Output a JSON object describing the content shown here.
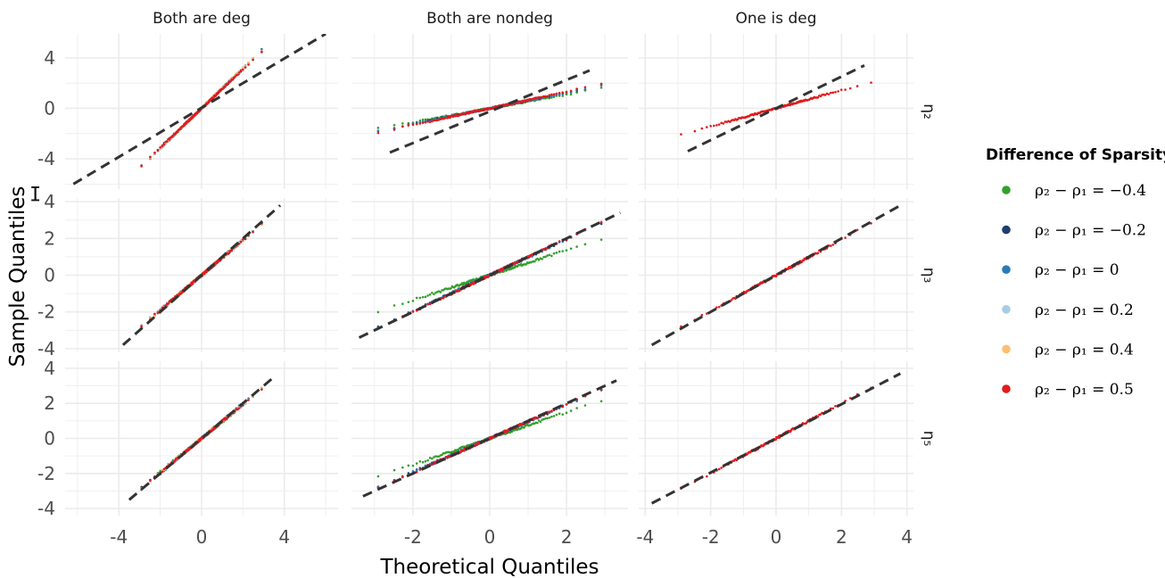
{
  "chart_data": {
    "type": "scatter",
    "subtype": "faceted QQ plot with reference lines",
    "xlabel": "Theoretical Quantiles",
    "ylabel": "Sample Quantiles",
    "columns": [
      "Both are deg",
      "Both are nondeg",
      "One is deg"
    ],
    "rows": [
      "η₂",
      "η₃",
      "η₅"
    ],
    "scales": "free_x by column, free_y by row",
    "x_ticks": [
      [
        -4,
        0,
        4
      ],
      [
        -2,
        0,
        2
      ],
      [
        -4,
        -2,
        0,
        2,
        4
      ]
    ],
    "y_ticks": [
      [
        -4,
        0,
        4
      ],
      [
        -4,
        -2,
        0,
        2,
        4
      ],
      [
        -4,
        -2,
        0,
        2,
        4
      ]
    ],
    "legend": {
      "title": "Difference of Sparsity",
      "position": "right",
      "entries": [
        {
          "label": "ρ₂ − ρ₁ = −0.4",
          "color": "#33a02c"
        },
        {
          "label": "ρ₂ − ρ₁ = −0.2",
          "color": "#1f3d6e"
        },
        {
          "label": "ρ₂ − ρ₁ = 0",
          "color": "#2b7bb9"
        },
        {
          "label": "ρ₂ − ρ₁ = 0.2",
          "color": "#a6cee3"
        },
        {
          "label": "ρ₂ − ρ₁ = 0.4",
          "color": "#fdbf6f"
        },
        {
          "label": "ρ₂ − ρ₁ = 0.5",
          "color": "#e31a1c"
        }
      ]
    },
    "grid": true,
    "panels": [
      {
        "row": 0,
        "col": 0,
        "line": {
          "x1": -6.2,
          "y1": -6.0,
          "x2": 6.0,
          "y2": 5.9
        },
        "series": [
          {
            "key": "m0.4",
            "slope": 1.6,
            "xmin": -3.3,
            "xmax": 3.2
          },
          {
            "key": "m0.2",
            "slope": 1.55,
            "xmin": -3.2,
            "xmax": 3.2
          },
          {
            "key": "0",
            "slope": 1.6,
            "xmin": -3.3,
            "xmax": 3.35
          },
          {
            "key": "0.2",
            "slope": 1.58,
            "xmin": -3.2,
            "xmax": 3.2
          },
          {
            "key": "0.4",
            "slope": 1.58,
            "xmin": -3.2,
            "xmax": 3.2
          },
          {
            "key": "0.5",
            "slope": 1.55,
            "xmin": -3.2,
            "xmax": 3.2
          }
        ]
      },
      {
        "row": 0,
        "col": 1,
        "line": {
          "x1": -2.6,
          "y1": -3.5,
          "x2": 2.6,
          "y2": 3.0
        },
        "series": [
          {
            "key": "m0.4",
            "slope": 0.55,
            "xmin": -3.3,
            "xmax": 3.3
          },
          {
            "key": "m0.2",
            "slope": 0.62,
            "xmin": -3.3,
            "xmax": 3.3
          },
          {
            "key": "0",
            "slope": 0.63,
            "xmin": -3.2,
            "xmax": 3.2
          },
          {
            "key": "0.5",
            "slope": 0.66,
            "xmin": -3.3,
            "xmax": 3.3
          }
        ]
      },
      {
        "row": 0,
        "col": 2,
        "line": {
          "x1": -2.7,
          "y1": -3.4,
          "x2": 2.7,
          "y2": 3.4
        },
        "series": [
          {
            "key": "0.5",
            "slope": 0.72,
            "xmin": -3.3,
            "xmax": 3.3
          }
        ]
      },
      {
        "row": 1,
        "col": 0,
        "line": {
          "x1": -3.8,
          "y1": -3.8,
          "x2": 3.8,
          "y2": 3.8
        },
        "series": [
          {
            "key": "m0.4",
            "slope": 0.95,
            "xmin": -3.3,
            "xmax": 3.3
          },
          {
            "key": "m0.2",
            "slope": 0.95,
            "xmin": -3.3,
            "xmax": 3.3
          },
          {
            "key": "0",
            "slope": 0.98,
            "xmin": -3.3,
            "xmax": 3.3
          },
          {
            "key": "0.2",
            "slope": 0.96,
            "xmin": -3.3,
            "xmax": 3.2
          },
          {
            "key": "0.4",
            "slope": 0.96,
            "xmin": -3.3,
            "xmax": 3.2
          },
          {
            "key": "0.5",
            "slope": 0.95,
            "xmin": -3.3,
            "xmax": 3.2
          }
        ]
      },
      {
        "row": 1,
        "col": 1,
        "line": {
          "x1": -3.4,
          "y1": -3.4,
          "x2": 3.4,
          "y2": 3.4
        },
        "series": [
          {
            "key": "m0.4",
            "slope": 0.68,
            "xmin": -3.3,
            "xmax": 3.3
          },
          {
            "key": "m0.2",
            "slope": 0.98,
            "xmin": -3.3,
            "xmax": 3.3
          },
          {
            "key": "0",
            "slope": 0.98,
            "xmin": -3.3,
            "xmax": 3.3
          },
          {
            "key": "0.5",
            "slope": 1.0,
            "xmin": -3.3,
            "xmax": 3.3
          }
        ]
      },
      {
        "row": 1,
        "col": 2,
        "line": {
          "x1": -3.8,
          "y1": -3.8,
          "x2": 3.8,
          "y2": 3.8
        },
        "series": [
          {
            "key": "0.5",
            "slope": 0.98,
            "xmin": -3.3,
            "xmax": 3.3
          }
        ]
      },
      {
        "row": 2,
        "col": 0,
        "line": {
          "x1": -3.5,
          "y1": -3.5,
          "x2": 3.5,
          "y2": 3.5
        },
        "series": [
          {
            "key": "m0.4",
            "slope": 0.95,
            "xmin": -3.3,
            "xmax": 3.3
          },
          {
            "key": "m0.2",
            "slope": 0.97,
            "xmin": -3.3,
            "xmax": 3.3
          },
          {
            "key": "0",
            "slope": 1.0,
            "xmin": -3.3,
            "xmax": 3.3
          },
          {
            "key": "0.2",
            "slope": 0.98,
            "xmin": -3.3,
            "xmax": 3.2
          },
          {
            "key": "0.4",
            "slope": 0.98,
            "xmin": -3.3,
            "xmax": 3.2
          },
          {
            "key": "0.5",
            "slope": 0.98,
            "xmin": -3.3,
            "xmax": 3.2
          }
        ]
      },
      {
        "row": 2,
        "col": 1,
        "line": {
          "x1": -3.3,
          "y1": -3.3,
          "x2": 3.3,
          "y2": 3.3
        },
        "series": [
          {
            "key": "m0.4",
            "slope": 0.75,
            "xmin": -3.3,
            "xmax": 3.3
          },
          {
            "key": "m0.2",
            "slope": 0.96,
            "xmin": -3.3,
            "xmax": 3.3
          },
          {
            "key": "0",
            "slope": 0.96,
            "xmin": -3.3,
            "xmax": 3.3
          },
          {
            "key": "0.5",
            "slope": 0.98,
            "xmin": -3.3,
            "xmax": 3.3
          }
        ]
      },
      {
        "row": 2,
        "col": 2,
        "line": {
          "x1": -3.8,
          "y1": -3.7,
          "x2": 3.8,
          "y2": 3.7
        },
        "series": [
          {
            "key": "0.5",
            "slope": 1.0,
            "xmin": -3.3,
            "xmax": 3.3
          }
        ]
      }
    ]
  }
}
